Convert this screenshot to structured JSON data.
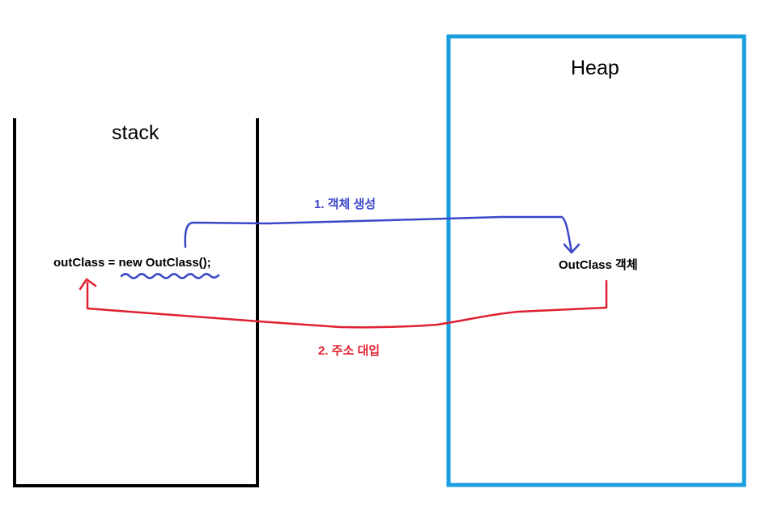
{
  "stack": {
    "title": "stack",
    "code": "outClass = new OutClass();",
    "border_color": "#000000"
  },
  "heap": {
    "title": "Heap",
    "object_label": "OutClass 객체",
    "border_color": "#1a9ee0"
  },
  "arrows": {
    "create": {
      "label": "1. 객체 생성",
      "color": "#3c46c8"
    },
    "assign": {
      "label": "2. 주소 대입",
      "color": "#e02030"
    }
  }
}
